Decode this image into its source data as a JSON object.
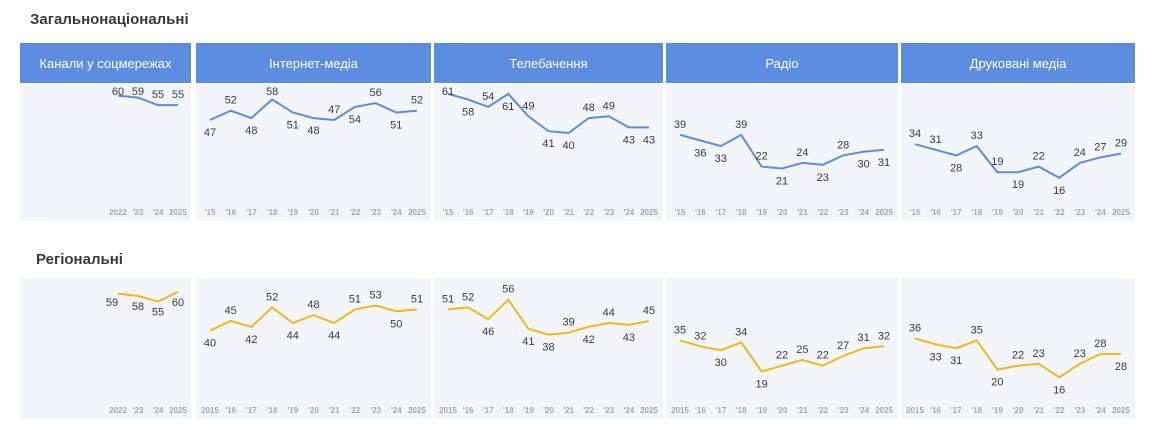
{
  "sections": {
    "national_title": "Загальнонаціональні",
    "regional_title": "Регіональні"
  },
  "colors": {
    "header": "#5b8ee0",
    "national_line": "#5b8ee0",
    "regional_line": "#f0b81c",
    "panel": "#f2f6fb"
  },
  "chart_data": [
    {
      "type": "line",
      "group": "national",
      "title": "Канали у соцмережах",
      "x": [
        "2022",
        "'23",
        "'24",
        "2025"
      ],
      "values": [
        60,
        59,
        55,
        55
      ],
      "ylim": [
        0,
        70
      ]
    },
    {
      "type": "line",
      "group": "national",
      "title": "Інтернет-медіа",
      "x": [
        "'15",
        "'16",
        "'17",
        "'18",
        "'19",
        "'20",
        "'21",
        "'22",
        "'23",
        "'24",
        "2025"
      ],
      "values": [
        47,
        52,
        48,
        58,
        51,
        48,
        47,
        54,
        56,
        51,
        52
      ],
      "ylim": [
        0,
        70
      ]
    },
    {
      "type": "line",
      "group": "national",
      "title": "Телебачення",
      "x": [
        "'15",
        "'16",
        "'17",
        "'18",
        "'19",
        "'20",
        "'21",
        "'22",
        "'23",
        "'24",
        "2025"
      ],
      "values": [
        61,
        58,
        54,
        61,
        49,
        41,
        40,
        48,
        49,
        43,
        43
      ],
      "ylim": [
        0,
        70
      ]
    },
    {
      "type": "line",
      "group": "national",
      "title": "Радіо",
      "x": [
        "'15",
        "'16",
        "'17",
        "'18",
        "'19",
        "'20",
        "'21",
        "'22",
        "'23",
        "'24",
        "2025"
      ],
      "values": [
        39,
        36,
        33,
        39,
        22,
        21,
        24,
        23,
        28,
        30,
        31
      ],
      "ylim": [
        0,
        70
      ]
    },
    {
      "type": "line",
      "group": "national",
      "title": "Друковані медіа",
      "x": [
        "'15",
        "'16",
        "'17",
        "'18",
        "'19",
        "'20",
        "'21",
        "'22",
        "'23",
        "'24",
        "2025"
      ],
      "values": [
        34,
        31,
        28,
        33,
        19,
        19,
        22,
        16,
        24,
        27,
        29
      ],
      "ylim": [
        0,
        70
      ]
    },
    {
      "type": "line",
      "group": "regional",
      "title": "",
      "x": [
        "2022",
        "'23",
        "'24",
        "2025"
      ],
      "values": [
        59,
        58,
        55,
        60
      ],
      "ylim": [
        0,
        70
      ]
    },
    {
      "type": "line",
      "group": "regional",
      "title": "",
      "x": [
        "2015",
        "'16",
        "'17",
        "'18",
        "'19",
        "'20",
        "'21",
        "'22",
        "'23",
        "'24",
        "2025"
      ],
      "values": [
        40,
        45,
        42,
        52,
        44,
        48,
        44,
        51,
        53,
        50,
        51
      ],
      "ylim": [
        0,
        70
      ]
    },
    {
      "type": "line",
      "group": "regional",
      "title": "",
      "x": [
        "2015",
        "'16",
        "'17",
        "'18",
        "'19",
        "'20",
        "'21",
        "'22",
        "'23",
        "'24",
        "2025"
      ],
      "values": [
        51,
        52,
        46,
        56,
        41,
        38,
        39,
        42,
        44,
        43,
        45
      ],
      "ylim": [
        0,
        70
      ]
    },
    {
      "type": "line",
      "group": "regional",
      "title": "",
      "x": [
        "2015",
        "'16",
        "'17",
        "'18",
        "'19",
        "'20",
        "'21",
        "'22",
        "'23",
        "'24",
        "2025"
      ],
      "values": [
        35,
        32,
        30,
        34,
        19,
        22,
        25,
        22,
        27,
        31,
        32
      ],
      "ylim": [
        0,
        70
      ]
    },
    {
      "type": "line",
      "group": "regional",
      "title": "",
      "x": [
        "2015",
        "'16",
        "'17",
        "'18",
        "'19",
        "'20",
        "'21",
        "'22",
        "'23",
        "'24",
        "2025"
      ],
      "values": [
        36,
        33,
        31,
        35,
        20,
        22,
        23,
        16,
        23,
        28,
        28
      ],
      "ylim": [
        0,
        70
      ]
    }
  ]
}
